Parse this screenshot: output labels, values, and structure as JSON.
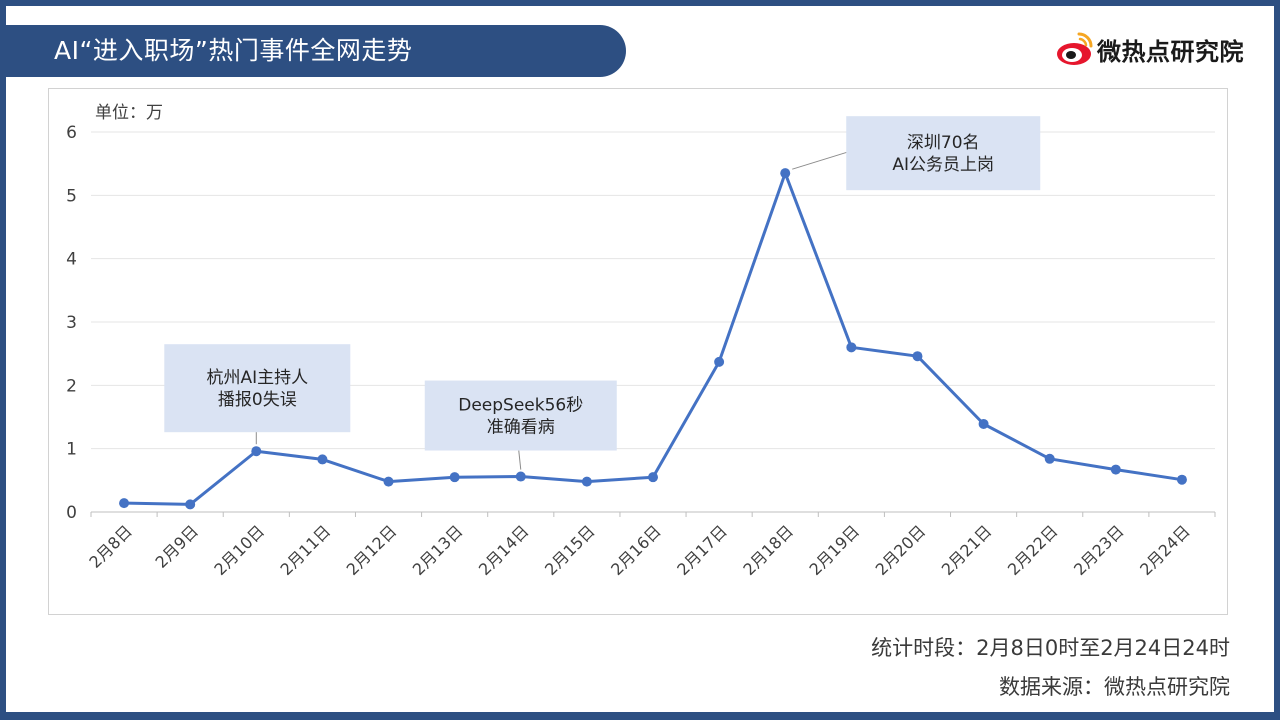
{
  "header": {
    "title": "AI“进入职场”热门事件全网走势",
    "logo_text": "微热点研究院"
  },
  "colors": {
    "frame": "#2d4f82",
    "line": "#4472c4",
    "callout_bg": "#dae3f3",
    "grid": "#e4e4e4"
  },
  "chart_data": {
    "type": "line",
    "unit_label": "单位：万",
    "categories": [
      "2月8日",
      "2月9日",
      "2月10日",
      "2月11日",
      "2月12日",
      "2月13日",
      "2月14日",
      "2月15日",
      "2月16日",
      "2月17日",
      "2月18日",
      "2月19日",
      "2月20日",
      "2月21日",
      "2月22日",
      "2月23日",
      "2月24日"
    ],
    "values": [
      0.14,
      0.12,
      0.96,
      0.83,
      0.48,
      0.55,
      0.56,
      0.48,
      0.55,
      2.37,
      5.35,
      2.6,
      2.46,
      1.39,
      0.84,
      0.67,
      0.51
    ],
    "yticks": [
      0,
      1,
      2,
      3,
      4,
      5,
      6
    ],
    "ylim": [
      0,
      6
    ],
    "grid": true,
    "legend": false,
    "annotations": [
      {
        "category_index": 2,
        "lines": [
          "杭州AI主持人",
          "播报0失误"
        ]
      },
      {
        "category_index": 6,
        "lines": [
          "DeepSeek56秒",
          "准确看病"
        ]
      },
      {
        "category_index": 10,
        "lines": [
          "深圳70名",
          "AI公务员上岗"
        ]
      }
    ]
  },
  "footer": {
    "period": "统计时段：2月8日0时至2月24日24时",
    "source": "数据来源：微热点研究院"
  }
}
